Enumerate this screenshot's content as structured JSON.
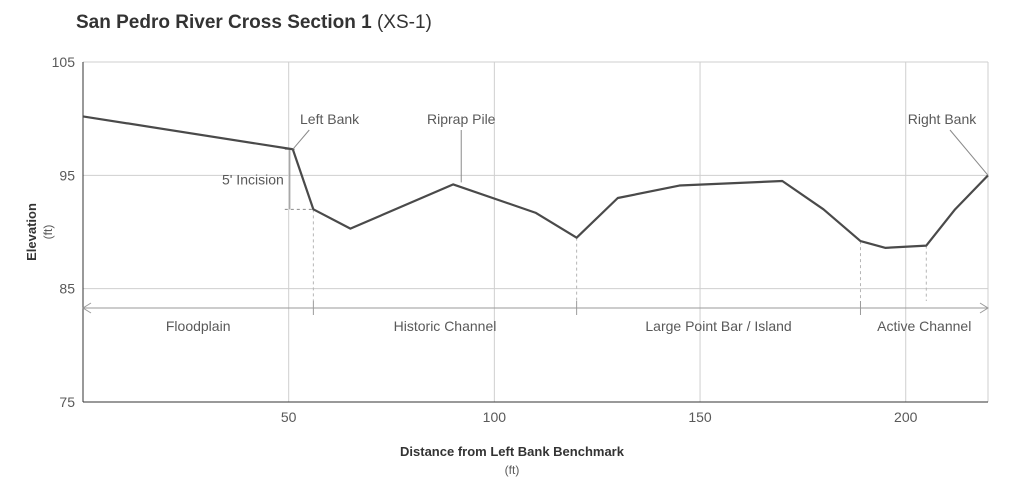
{
  "chart_data": {
    "type": "line",
    "title": "San Pedro River Cross Section 1",
    "title_suffix": "(XS-1)",
    "xlabel": "Distance from Left Bank Benchmark",
    "xlabel_unit": "(ft)",
    "ylabel": "Elevation",
    "ylabel_unit": "(ft)",
    "xlim": [
      0,
      220
    ],
    "ylim": [
      75,
      105
    ],
    "xticks": [
      50,
      100,
      150,
      200
    ],
    "yticks": [
      75,
      85,
      95,
      105
    ],
    "grid": true,
    "series": [
      {
        "x": [
          0,
          51,
          56,
          65,
          90,
          110,
          120,
          130,
          145,
          170,
          180,
          189,
          195,
          205,
          212,
          220
        ],
        "y": [
          100.2,
          97.3,
          92,
          90.3,
          94.2,
          91.7,
          89.5,
          93,
          94.1,
          94.5,
          92,
          89.2,
          88.6,
          88.8,
          92,
          95
        ],
        "color": "#4a4a4a"
      }
    ],
    "annotations": {
      "left_bank": "Left Bank",
      "riprap_pile": "Riprap Pile",
      "right_bank": "Right Bank",
      "incision": "5' Incision"
    },
    "zones": [
      {
        "label": "Floodplain",
        "x_start": 0,
        "x_end": 56
      },
      {
        "label": "Historic Channel",
        "x_start": 56,
        "x_end": 120
      },
      {
        "label": "Large Point Bar / Island",
        "x_start": 120,
        "x_end": 189
      },
      {
        "label": "Active Channel",
        "x_start": 189,
        "x_end": 220
      }
    ],
    "colors": {
      "line": "#4a4a4a",
      "grid": "#cfcfcf",
      "axis": "#333333",
      "text": "#595959",
      "zone_line": "#9a9a9a"
    }
  }
}
